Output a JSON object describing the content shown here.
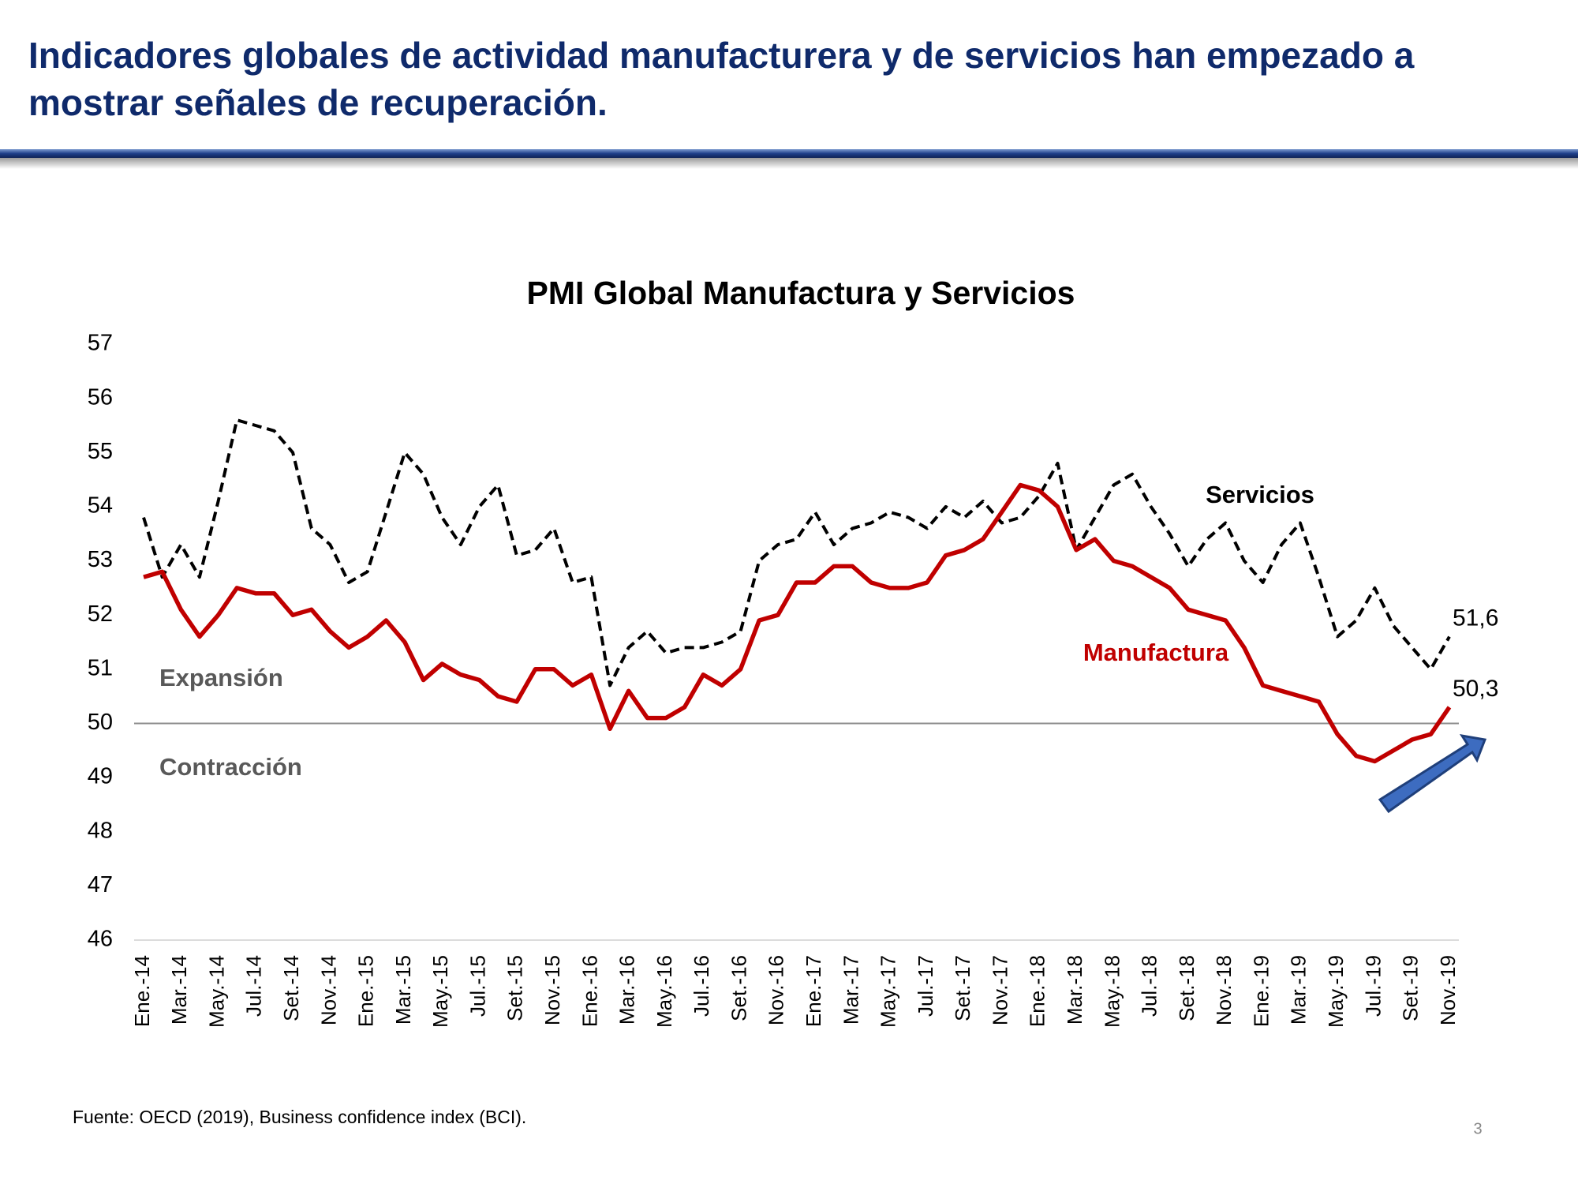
{
  "slide": {
    "title_line1": "Indicadores globales de actividad manufacturera y de servicios han empezado a",
    "title_line2": "mostrar señales de recuperación.",
    "source": "Fuente: OECD (2019), Business confidence index (BCI).",
    "page": "3"
  },
  "chart_data": {
    "type": "line",
    "title": "PMI Global Manufactura y Servicios",
    "categories": [
      "Ene.-14",
      null,
      "Mar.-14",
      null,
      "May.-14",
      null,
      "Jul.-14",
      null,
      "Set.-14",
      null,
      "Nov.-14",
      null,
      "Ene.-15",
      null,
      "Mar.-15",
      null,
      "May.-15",
      null,
      "Jul.-15",
      null,
      "Set.-15",
      null,
      "Nov.-15",
      null,
      "Ene.-16",
      null,
      "Mar.-16",
      null,
      "May.-16",
      null,
      "Jul.-16",
      null,
      "Set.-16",
      null,
      "Nov.-16",
      null,
      "Ene.-17",
      null,
      "Mar.-17",
      null,
      "May.-17",
      null,
      "Jul.-17",
      null,
      "Set.-17",
      null,
      "Nov.-17",
      null,
      "Ene.-18",
      null,
      "Mar.-18",
      null,
      "May.-18",
      null,
      "Jul.-18",
      null,
      "Set.-18",
      null,
      "Nov.-18",
      null,
      "Ene.-19",
      null,
      "Mar.-19",
      null,
      "May.-19",
      null,
      "Jul.-19",
      null,
      "Set.-19",
      null,
      "Nov.-19"
    ],
    "series": [
      {
        "name": "Servicios",
        "color": "#000000",
        "dashed": true,
        "values": [
          53.8,
          52.7,
          53.3,
          52.7,
          54.1,
          55.6,
          55.5,
          55.4,
          55.0,
          53.6,
          53.3,
          52.6,
          52.8,
          53.9,
          55.0,
          54.6,
          53.8,
          53.3,
          54.0,
          54.4,
          53.1,
          53.2,
          53.6,
          52.6,
          52.7,
          50.7,
          51.4,
          51.7,
          51.3,
          51.4,
          51.4,
          51.5,
          51.7,
          53.0,
          53.3,
          53.4,
          53.9,
          53.3,
          53.6,
          53.7,
          53.9,
          53.8,
          53.6,
          54.0,
          53.8,
          54.1,
          53.7,
          53.8,
          54.2,
          54.8,
          53.2,
          53.8,
          54.4,
          54.6,
          54.0,
          53.5,
          52.9,
          53.4,
          53.7,
          53.0,
          52.6,
          53.3,
          53.7,
          52.7,
          51.6,
          51.9,
          52.5,
          51.8,
          51.4,
          51.0,
          51.6
        ],
        "value_labels": [
          null,
          null,
          null,
          null,
          null,
          null,
          null,
          null,
          null,
          null,
          null,
          null,
          null,
          null,
          null,
          null,
          null,
          null,
          null,
          null,
          null,
          null,
          null,
          null,
          null,
          null,
          null,
          null,
          null,
          null,
          null,
          null,
          null,
          null,
          null,
          null,
          null,
          null,
          null,
          null,
          null,
          null,
          null,
          null,
          null,
          null,
          null,
          null,
          null,
          null,
          null,
          null,
          null,
          null,
          null,
          null,
          null,
          null,
          null,
          null,
          null,
          null,
          null,
          null,
          null,
          null,
          null,
          null,
          null,
          null,
          "51,6"
        ]
      },
      {
        "name": "Manufactura",
        "color": "#c00000",
        "dashed": false,
        "values": [
          52.7,
          52.8,
          52.1,
          51.6,
          52.0,
          52.5,
          52.4,
          52.4,
          52.0,
          52.1,
          51.7,
          51.4,
          51.6,
          51.9,
          51.5,
          50.8,
          51.1,
          50.9,
          50.8,
          50.5,
          50.4,
          51.0,
          51.0,
          50.7,
          50.9,
          49.9,
          50.6,
          50.1,
          50.1,
          50.3,
          50.9,
          50.7,
          51.0,
          51.9,
          52.0,
          52.6,
          52.6,
          52.9,
          52.9,
          52.6,
          52.5,
          52.5,
          52.6,
          53.1,
          53.2,
          53.4,
          53.9,
          54.4,
          54.3,
          54.0,
          53.2,
          53.4,
          53.0,
          52.9,
          52.7,
          52.5,
          52.1,
          52.0,
          51.9,
          51.4,
          50.7,
          50.6,
          50.5,
          50.4,
          49.8,
          49.4,
          49.3,
          49.5,
          49.7,
          49.8,
          50.3
        ],
        "value_labels": [
          null,
          null,
          null,
          null,
          null,
          null,
          null,
          null,
          null,
          null,
          null,
          null,
          null,
          null,
          null,
          null,
          null,
          null,
          null,
          null,
          null,
          null,
          null,
          null,
          null,
          null,
          null,
          null,
          null,
          null,
          null,
          null,
          null,
          null,
          null,
          null,
          null,
          null,
          null,
          null,
          null,
          null,
          null,
          null,
          null,
          null,
          null,
          null,
          null,
          null,
          null,
          null,
          null,
          null,
          null,
          null,
          null,
          null,
          null,
          null,
          null,
          null,
          null,
          null,
          null,
          null,
          null,
          null,
          null,
          null,
          "50,3"
        ]
      }
    ],
    "ylim": [
      46,
      57
    ],
    "yticks": [
      46,
      47,
      48,
      49,
      50,
      51,
      52,
      53,
      54,
      55,
      56,
      57
    ],
    "reference_line": 50,
    "annotations": {
      "above": "Expansión",
      "below": "Contracción"
    },
    "grid": false
  }
}
